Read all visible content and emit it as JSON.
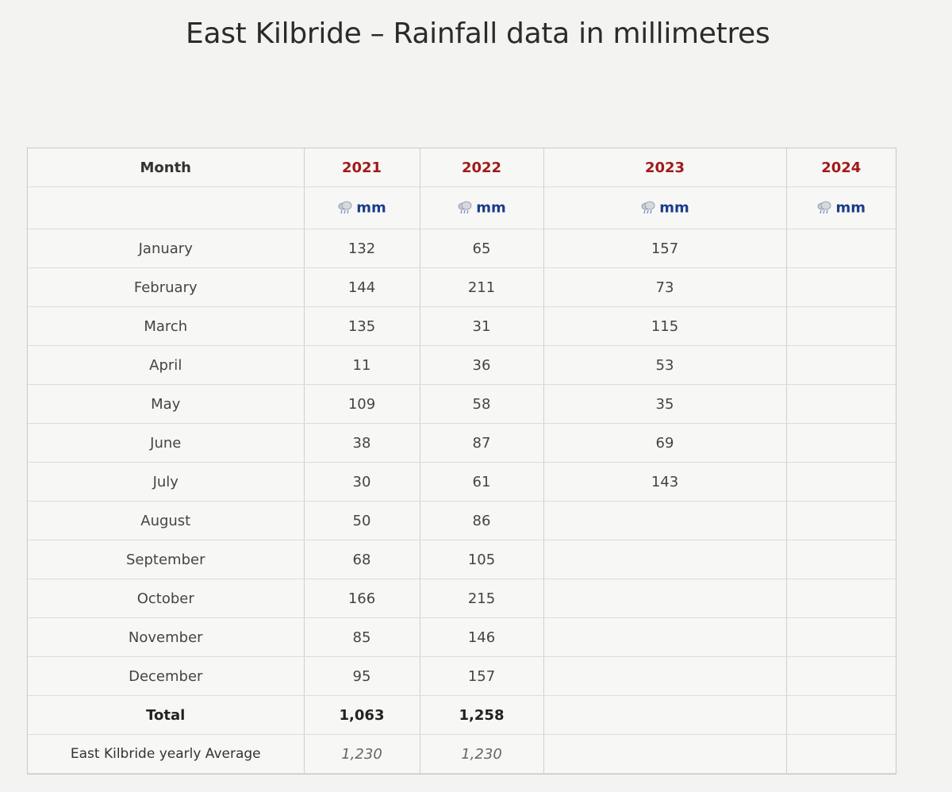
{
  "title": "East Kilbride – Rainfall data in millimetres",
  "table": {
    "header": {
      "month": "Month",
      "years": [
        "2021",
        "2022",
        "2023",
        "2024"
      ]
    },
    "unit_label": "mm",
    "unit_icon": "rain-cloud-icon",
    "rows": [
      {
        "month": "January",
        "v2021": "132",
        "v2022": "65",
        "v2023": "157",
        "v2024": ""
      },
      {
        "month": "February",
        "v2021": "144",
        "v2022": "211",
        "v2023": "73",
        "v2024": ""
      },
      {
        "month": "March",
        "v2021": "135",
        "v2022": "31",
        "v2023": "115",
        "v2024": ""
      },
      {
        "month": "April",
        "v2021": "11",
        "v2022": "36",
        "v2023": "53",
        "v2024": ""
      },
      {
        "month": "May",
        "v2021": "109",
        "v2022": "58",
        "v2023": "35",
        "v2024": ""
      },
      {
        "month": "June",
        "v2021": "38",
        "v2022": "87",
        "v2023": "69",
        "v2024": ""
      },
      {
        "month": "July",
        "v2021": "30",
        "v2022": "61",
        "v2023": "143",
        "v2024": ""
      },
      {
        "month": "August",
        "v2021": "50",
        "v2022": "86",
        "v2023": "",
        "v2024": ""
      },
      {
        "month": "September",
        "v2021": "68",
        "v2022": "105",
        "v2023": "",
        "v2024": ""
      },
      {
        "month": "October",
        "v2021": "166",
        "v2022": "215",
        "v2023": "",
        "v2024": ""
      },
      {
        "month": "November",
        "v2021": "85",
        "v2022": "146",
        "v2023": "",
        "v2024": ""
      },
      {
        "month": "December",
        "v2021": "95",
        "v2022": "157",
        "v2023": "",
        "v2024": ""
      }
    ],
    "total": {
      "label": "Total",
      "v2021": "1,063",
      "v2022": "1,258",
      "v2023": "",
      "v2024": ""
    },
    "average": {
      "label": "East Kilbride yearly Average",
      "v2021": "1,230",
      "v2022": "1,230",
      "v2023": "",
      "v2024": ""
    }
  },
  "colors": {
    "year_header": "#a11a1a",
    "unit_text": "#1c3d8c"
  }
}
